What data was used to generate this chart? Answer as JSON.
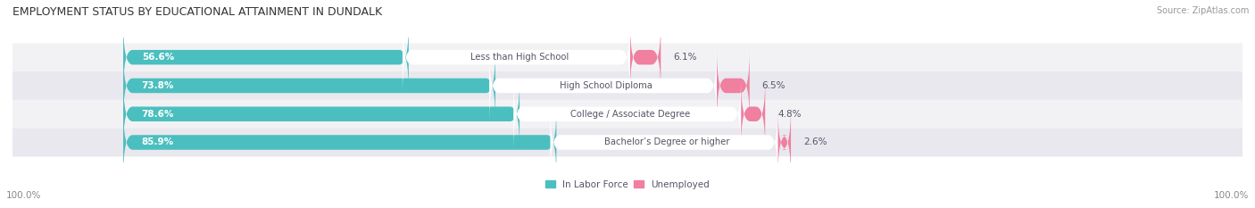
{
  "title": "EMPLOYMENT STATUS BY EDUCATIONAL ATTAINMENT IN DUNDALK",
  "source": "Source: ZipAtlas.com",
  "categories": [
    "Less than High School",
    "High School Diploma",
    "College / Associate Degree",
    "Bachelor’s Degree or higher"
  ],
  "labor_force": [
    56.6,
    73.8,
    78.6,
    85.9
  ],
  "unemployed": [
    6.1,
    6.5,
    4.8,
    2.6
  ],
  "labor_force_color": "#4BBFBF",
  "unemployed_color": "#F07FA0",
  "row_bg_colors": [
    "#F2F2F5",
    "#E8E8EE"
  ],
  "label_color": "#555566",
  "title_color": "#333333",
  "source_color": "#999999",
  "axis_label_color": "#888888",
  "legend_labor_force": "In Labor Force",
  "legend_unemployed": "Unemployed",
  "left_axis_label": "100.0%",
  "right_axis_label": "100.0%",
  "bar_height": 0.52,
  "figsize": [
    14.06,
    2.33
  ],
  "dpi": 100
}
